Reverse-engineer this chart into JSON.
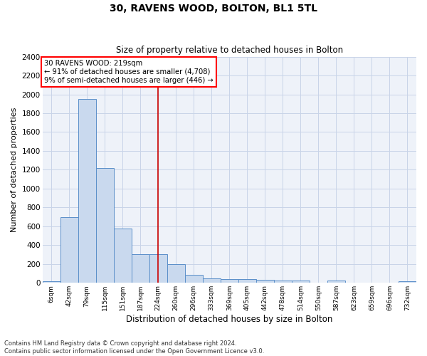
{
  "title": "30, RAVENS WOOD, BOLTON, BL1 5TL",
  "subtitle": "Size of property relative to detached houses in Bolton",
  "xlabel": "Distribution of detached houses by size in Bolton",
  "ylabel": "Number of detached properties",
  "bar_color": "#c9d9ee",
  "bar_edge_color": "#5b8fc9",
  "background_color": "#ffffff",
  "plot_bg_color": "#eef2f9",
  "grid_color": "#c8d4e8",
  "vline_color": "#cc0000",
  "annotation_text": "30 RAVENS WOOD: 219sqm\n← 91% of detached houses are smaller (4,708)\n9% of semi-detached houses are larger (446) →",
  "vline_x": 6,
  "footer": "Contains HM Land Registry data © Crown copyright and database right 2024.\nContains public sector information licensed under the Open Government Licence v3.0.",
  "categories": [
    "6sqm",
    "42sqm",
    "79sqm",
    "115sqm",
    "151sqm",
    "187sqm",
    "224sqm",
    "260sqm",
    "296sqm",
    "333sqm",
    "369sqm",
    "405sqm",
    "442sqm",
    "478sqm",
    "514sqm",
    "550sqm",
    "587sqm",
    "623sqm",
    "659sqm",
    "696sqm",
    "732sqm"
  ],
  "values": [
    15,
    700,
    1950,
    1220,
    575,
    305,
    305,
    200,
    85,
    47,
    40,
    40,
    30,
    25,
    28,
    5,
    22,
    5,
    5,
    5,
    20
  ],
  "ylim": [
    0,
    2400
  ],
  "yticks": [
    0,
    200,
    400,
    600,
    800,
    1000,
    1200,
    1400,
    1600,
    1800,
    2000,
    2200,
    2400
  ],
  "figsize": [
    6.0,
    5.0
  ],
  "dpi": 100
}
